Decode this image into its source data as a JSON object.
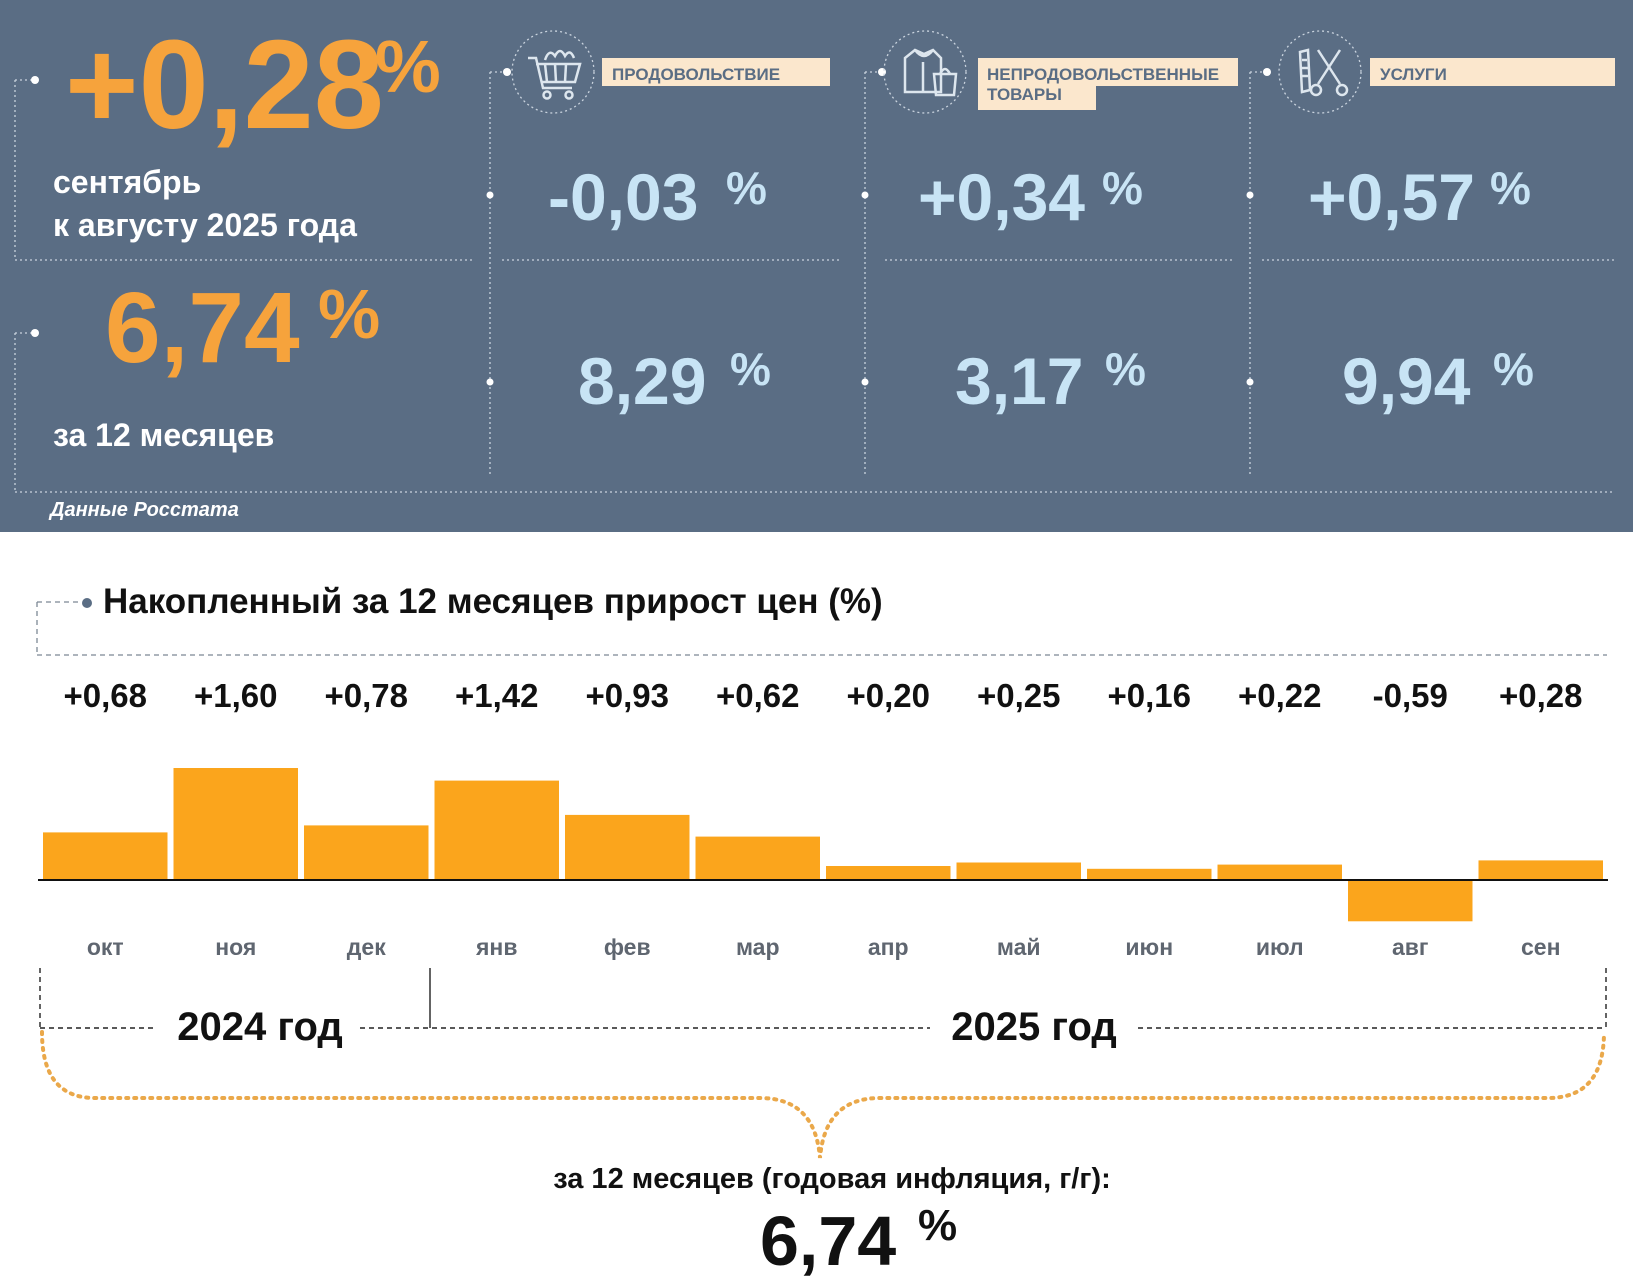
{
  "summary": {
    "monthly_value": "+0,28",
    "monthly_unit": "%",
    "monthly_caption_1": "сентябрь",
    "monthly_caption_2": "к августу 2025 года",
    "annual_value": "6,74",
    "annual_unit": "%",
    "annual_caption": "за 12 месяцев",
    "source": "Данные Росстата"
  },
  "categories": [
    {
      "label_1": "ПРОДОВОЛЬСТВИЕ",
      "label_2": "",
      "icon": "shopping-cart-icon",
      "monthly": "-0,03",
      "annual": "8,29",
      "unit": "%"
    },
    {
      "label_1": "НЕПРОДОВОЛЬСТВЕННЫЕ",
      "label_2": "ТОВАРЫ",
      "icon": "clothes-bag-icon",
      "monthly": "+0,34",
      "annual": "3,17",
      "unit": "%"
    },
    {
      "label_1": "УСЛУГИ",
      "label_2": "",
      "icon": "comb-scissors-icon",
      "monthly": "+0,57",
      "annual": "9,94",
      "unit": "%"
    }
  ],
  "chart_title": "Накопленный за 12 месяцев прирост цен (%)",
  "chart_data": {
    "type": "bar",
    "title": "Накопленный за 12 месяцев прирост цен (%)",
    "categories": [
      "окт",
      "ноя",
      "дек",
      "янв",
      "фев",
      "мар",
      "апр",
      "май",
      "июн",
      "июл",
      "авг",
      "сен"
    ],
    "values": [
      0.68,
      1.6,
      0.78,
      1.42,
      0.93,
      0.62,
      0.2,
      0.25,
      0.16,
      0.22,
      -0.59,
      0.28
    ],
    "value_labels": [
      "+0,68",
      "+1,60",
      "+0,78",
      "+1,42",
      "+0,93",
      "+0,62",
      "+0,20",
      "+0,25",
      "+0,16",
      "+0,22",
      "-0,59",
      "+0,28"
    ],
    "year_groups": [
      {
        "label": "2024 год",
        "months": [
          "окт",
          "ноя",
          "дек"
        ]
      },
      {
        "label": "2025 год",
        "months": [
          "янв",
          "фев",
          "мар",
          "апр",
          "май",
          "июн",
          "июл",
          "авг",
          "сен"
        ]
      }
    ],
    "ylim": [
      -0.6,
      1.6
    ],
    "grid": false,
    "legend": "none"
  },
  "footer": {
    "caption": "за 12 месяцев (годовая инфляция, г/г):",
    "value": "6,74",
    "unit": "%"
  },
  "colors": {
    "panel_bg": "#5a6d84",
    "orange": "#f6a33c",
    "bar": "#fba51c",
    "light_blue": "#c8e4f5",
    "label_bg": "#fbe7cd",
    "brace": "#eaa84a"
  }
}
